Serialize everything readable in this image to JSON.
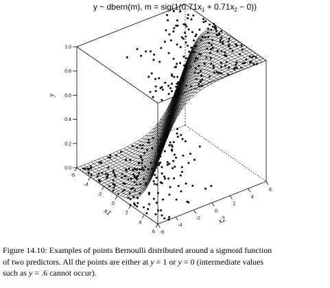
{
  "chart_data": {
    "type": "scatter",
    "title_prefix": "y ~ dbern(m), m = sig(1(0.71x",
    "title_mid": " + 0.71x",
    "title_suffix": " − 0))",
    "sub1": "1",
    "sub2": "2",
    "xlabel": "x1",
    "x2label": "x2",
    "ylabel": "y",
    "x1_range": [
      -6,
      6
    ],
    "x2_range": [
      -6,
      6
    ],
    "y_range": [
      0,
      1
    ],
    "x1_ticks": [
      "-6",
      "-4",
      "-2",
      "0",
      "2",
      "4",
      "6"
    ],
    "x2_ticks": [
      "-6",
      "-4",
      "-2",
      "0",
      "2",
      "4",
      "6"
    ],
    "y_ticks": [
      "0.0",
      "0.2",
      "0.4",
      "0.6",
      "0.8",
      "1.0"
    ],
    "surface": "sigmoid(0.71*x1 + 0.71*x2)",
    "points_note": "all points at y = 1 or y = 0"
  },
  "caption": {
    "line1": "Figure 14.10: Examples of points Bernoulli distributed around a sigmoid function",
    "line2a": "of two predictors. All the points are either at ",
    "y": "y",
    "eq1": " = 1 or ",
    "eq0": " = 0 (intermediate values",
    "line3a": "such as ",
    "eq6": " = .6 cannot occur)."
  }
}
